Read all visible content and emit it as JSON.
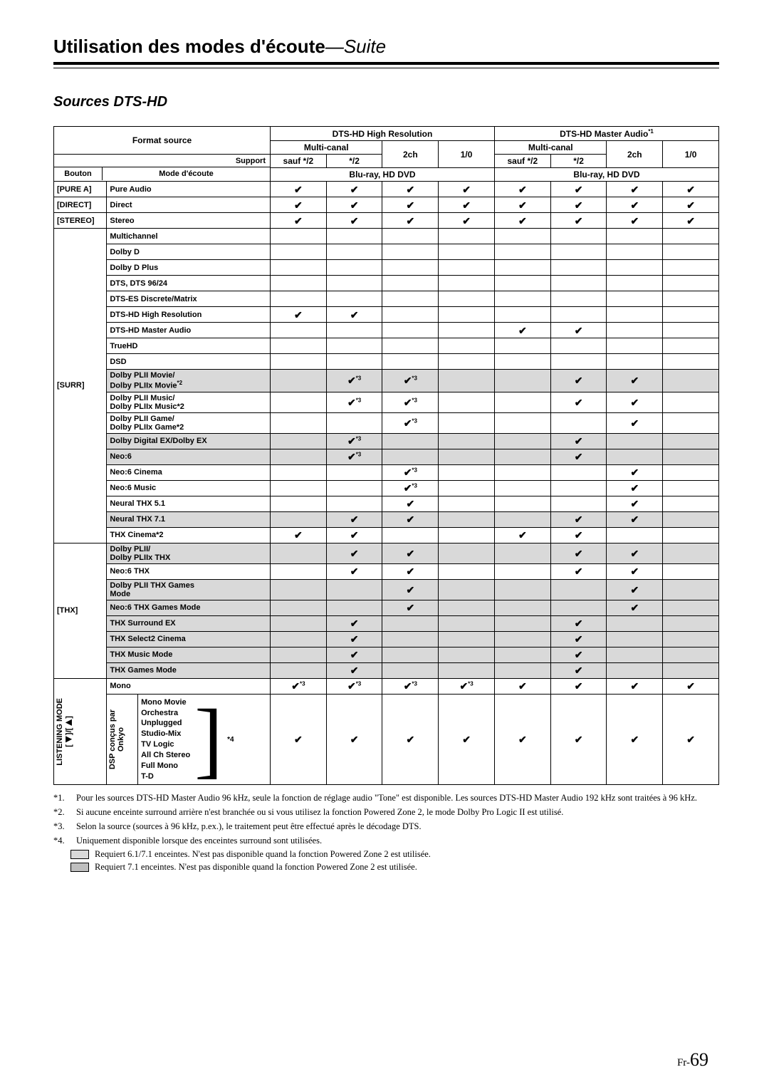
{
  "title_main": "Utilisation des modes d'écoute",
  "title_suite": "—Suite",
  "section": "Sources DTS-HD",
  "header": {
    "format_source": "Format source",
    "group1": "DTS-HD High Resolution",
    "group2": "DTS-HD Master Audio",
    "group2_sup": "*1",
    "multicanal": "Multi-canal",
    "ch2": "2ch",
    "ch10": "1/0",
    "sauf": "sauf */2",
    "star2": "*/2",
    "support": "Support",
    "bluray": "Blu-ray, HD DVD",
    "bouton": "Bouton",
    "mode_ecoute": "Mode d'écoute"
  },
  "buttons": {
    "pureA": "[PURE A]",
    "direct": "[DIRECT]",
    "stereo": "[STEREO]",
    "surr": "[SURR]",
    "thx": "[THX]",
    "listening": "LISTENING MODE\n[◀]/[▶]",
    "dsp": "DSP conçus par\nOnkyo"
  },
  "modes": {
    "pure": "Pure Audio",
    "direct": "Direct",
    "stereo": "Stereo",
    "multi": "Multichannel",
    "dolbyD": "Dolby D",
    "dolbyDP": "Dolby D Plus",
    "dts96": "DTS, DTS 96/24",
    "dtsES": "DTS-ES Discrete/Matrix",
    "dtsHR": "DTS-HD High Resolution",
    "dtsMA": "DTS-HD Master Audio",
    "trueHD": "TrueHD",
    "dsd": "DSD",
    "pl2movie": "Dolby PLII Movie/\nDolby PLIIx Movie",
    "pl2movie_sup": "*2",
    "pl2music": "Dolby PLII Music/\nDolby PLIIx Music*2",
    "pl2game": "Dolby PLII Game/\nDolby PLIIx Game*2",
    "ddex": "Dolby Digital EX/Dolby EX",
    "neo6": "Neo:6",
    "neo6c": "Neo:6 Cinema",
    "neo6m": "Neo:6 Music",
    "nthx51": "Neural THX 5.1",
    "nthx71": "Neural THX 7.1",
    "thxcin": "THX Cinema*2",
    "pl2thx": "Dolby PLII/\nDolby PLIIx THX",
    "neo6thx": "Neo:6 THX",
    "pl2thxg": "Dolby PLII THX Games\nMode",
    "neo6thxg": "Neo:6 THX Games Mode",
    "thxsex": "THX Surround EX",
    "thxs2c": "THX Select2 Cinema",
    "thxmm": "THX Music Mode",
    "thxgm": "THX Games Mode",
    "mono": "Mono",
    "dsp_items": [
      "Mono Movie",
      "Orchestra",
      "Unplugged",
      "Studio-Mix",
      "TV Logic",
      "All Ch Stereo",
      "Full Mono",
      "T-D"
    ],
    "star4": "*4"
  },
  "mark": "✔",
  "sup3": "*3",
  "footnotes": {
    "f1n": "*1.",
    "f1": "Pour les sources DTS-HD Master Audio 96 kHz, seule la fonction de réglage audio \"Tone\" est disponible. Les sources DTS-HD Master Audio 192 kHz sont traitées à 96 kHz.",
    "f2n": "*2.",
    "f2": "Si aucune enceinte surround arrière n'est branchée ou si vous utilisez la fonction Powered Zone 2, le mode Dolby Pro Logic II est utilisé.",
    "f3n": "*3.",
    "f3": "Selon la source (sources à 96 kHz, p.ex.), le traitement peut être effectué après le décodage DTS.",
    "f4n": "*4.",
    "f4": "Uniquement disponible lorsque des enceintes surround sont utilisées.",
    "l1": "Requiert 6.1/7.1 enceintes. N'est pas disponible quand la fonction Powered Zone 2 est utilisée.",
    "l2": "Requiert 7.1 enceintes. N'est pas disponible quand la fonction Powered Zone 2 est utilisée."
  },
  "page": {
    "prefix": "Fr-",
    "num": "69"
  },
  "colors": {
    "shade": "#d9d9d9",
    "white": "#ffffff"
  }
}
